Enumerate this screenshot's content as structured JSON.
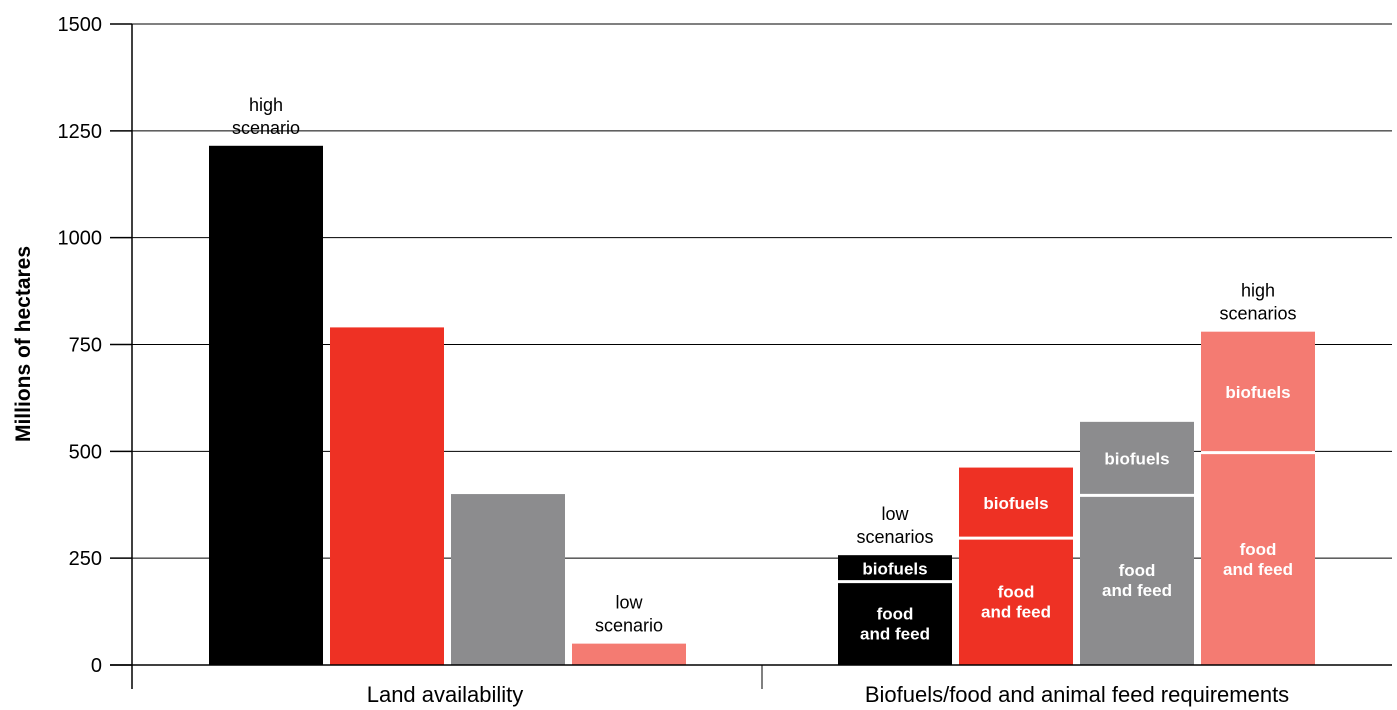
{
  "chart_data": {
    "type": "bar",
    "ylabel": "Millions of hectares",
    "ylim": [
      0,
      1500
    ],
    "yticks": [
      0,
      250,
      500,
      750,
      1000,
      1250,
      1500
    ],
    "grid": "horizontal",
    "groups": [
      {
        "label": "Land availability",
        "stacked": false,
        "bars": [
          {
            "value": 1215,
            "color": "#000000"
          },
          {
            "value": 790,
            "color": "#ee3124"
          },
          {
            "value": 400,
            "color": "#8c8c8e"
          },
          {
            "value": 50,
            "color": "#f47b72"
          }
        ],
        "annotations": [
          {
            "bar": 0,
            "lines": [
              "high",
              "scenario"
            ]
          },
          {
            "bar": 3,
            "lines": [
              "low",
              "scenario"
            ]
          }
        ]
      },
      {
        "label": "Biofuels/food and animal feed requirements",
        "stacked": true,
        "bars": [
          {
            "color": "#000000",
            "segments": [
              {
                "name": "food and feed",
                "lines": [
                  "food",
                  "and feed"
                ],
                "value": 195
              },
              {
                "name": "biofuels",
                "lines": [
                  "biofuels"
                ],
                "value": 62
              }
            ]
          },
          {
            "color": "#ee3124",
            "segments": [
              {
                "name": "food and feed",
                "lines": [
                  "food",
                  "and feed"
                ],
                "value": 297
              },
              {
                "name": "biofuels",
                "lines": [
                  "biofuels"
                ],
                "value": 165
              }
            ]
          },
          {
            "color": "#8c8c8e",
            "segments": [
              {
                "name": "food and feed",
                "lines": [
                  "food",
                  "and feed"
                ],
                "value": 397
              },
              {
                "name": "biofuels",
                "lines": [
                  "biofuels"
                ],
                "value": 172
              }
            ]
          },
          {
            "color": "#f47b72",
            "segments": [
              {
                "name": "food and feed",
                "lines": [
                  "food",
                  "and feed"
                ],
                "value": 497
              },
              {
                "name": "biofuels",
                "lines": [
                  "biofuels"
                ],
                "value": 283
              }
            ]
          }
        ],
        "annotations": [
          {
            "bar": 0,
            "lines": [
              "low",
              "scenarios"
            ]
          },
          {
            "bar": 3,
            "lines": [
              "high",
              "scenarios"
            ]
          }
        ]
      }
    ]
  }
}
